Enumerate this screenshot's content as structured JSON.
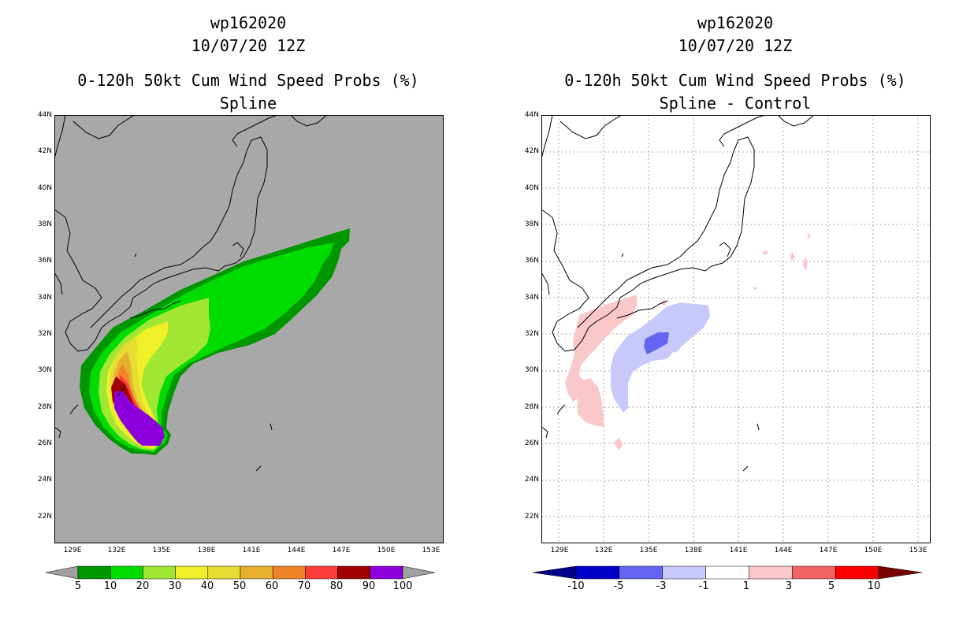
{
  "left": {
    "title_line1": "wp162020",
    "title_line2": "10/07/20 12Z",
    "title_line3": "0-120h 50kt Cum Wind Speed Probs (%)",
    "title_line4": "Spline"
  },
  "right": {
    "title_line1": "wp162020",
    "title_line2": "10/07/20 12Z",
    "title_line3": "0-120h 50kt Cum Wind Speed Probs (%)",
    "title_line4": "Spline - Control"
  },
  "lat_labels": [
    "44N",
    "42N",
    "40N",
    "38N",
    "36N",
    "34N",
    "32N",
    "30N",
    "28N",
    "26N",
    "24N",
    "22N"
  ],
  "lon_labels": [
    "129E",
    "132E",
    "135E",
    "138E",
    "141E",
    "144E",
    "147E",
    "150E",
    "153E"
  ],
  "left_colorbar": {
    "labels": [
      "5",
      "10",
      "20",
      "30",
      "40",
      "50",
      "60",
      "70",
      "80",
      "90",
      "100"
    ],
    "colors": [
      "#009600",
      "#00dc00",
      "#a0e632",
      "#f0f028",
      "#e6dc32",
      "#e6af2d",
      "#f08228",
      "#fa3c3c",
      "#a00000",
      "#8c00dc"
    ],
    "under": "#a0a0a0",
    "over": "#a0a0a0",
    "background": "#a8a8a8"
  },
  "right_colorbar": {
    "labels": [
      "-10",
      "-5",
      "-3",
      "-1",
      "1",
      "3",
      "5",
      "10"
    ],
    "colors": [
      "#0000c8",
      "#6464f0",
      "#c8c8fa",
      "#ffffff",
      "#fac8c8",
      "#f06464",
      "#fa0000"
    ],
    "under": "#00008c",
    "over": "#780000"
  }
}
